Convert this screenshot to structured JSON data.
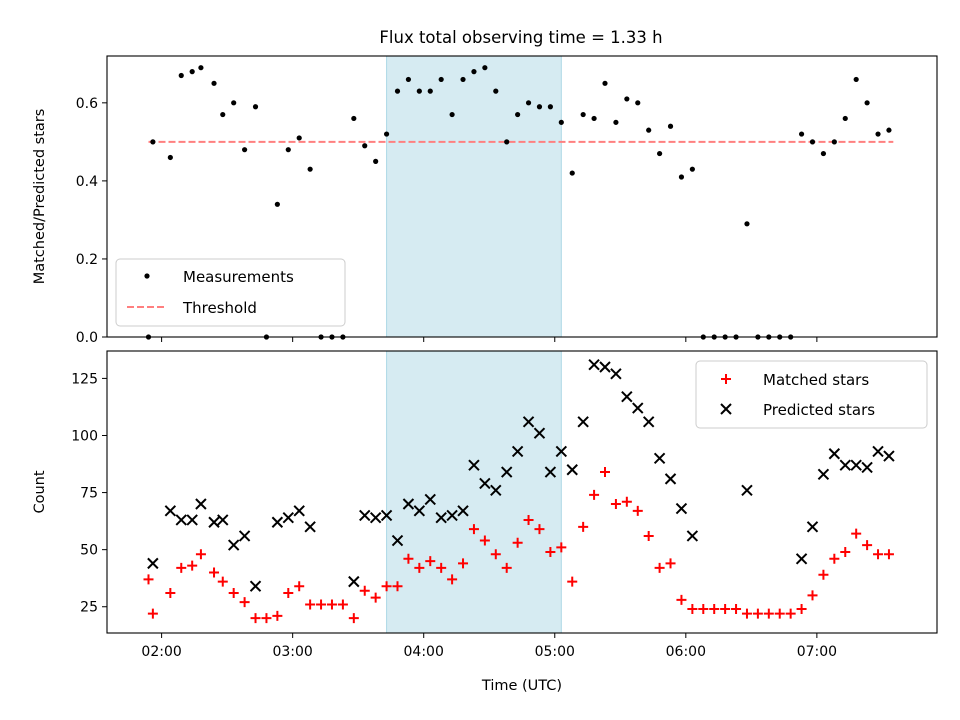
{
  "title": "Flux total observing time = 1.33 h",
  "colors": {
    "shade": "#add8e6",
    "measurements": "#000000",
    "threshold": "#ff7f7f",
    "matched": "#ff0000",
    "predicted": "#000000"
  },
  "chart_data": [
    {
      "type": "scatter",
      "ylabel": "Matched/Predicted stars",
      "xlim": [
        "01:35",
        "07:55"
      ],
      "ylim": [
        0,
        0.72
      ],
      "yticks": [
        0.0,
        0.2,
        0.4,
        0.6
      ],
      "ytick_labels": [
        "0.0",
        "0.2",
        "0.4",
        "0.6"
      ],
      "shaded_interval": [
        "03:43",
        "05:03"
      ],
      "legend": {
        "placement": "lower-left",
        "entries": [
          "Measurements",
          "Threshold"
        ]
      },
      "threshold": {
        "name": "Threshold",
        "y": 0.5,
        "x_range": [
          "01:54",
          "07:35"
        ]
      },
      "series": [
        {
          "name": "Measurements",
          "points": [
            [
              "01:54",
              0.0
            ],
            [
              "01:56",
              0.5
            ],
            [
              "02:04",
              0.46
            ],
            [
              "02:09",
              0.67
            ],
            [
              "02:14",
              0.68
            ],
            [
              "02:18",
              0.69
            ],
            [
              "02:24",
              0.65
            ],
            [
              "02:28",
              0.57
            ],
            [
              "02:33",
              0.6
            ],
            [
              "02:38",
              0.48
            ],
            [
              "02:43",
              0.59
            ],
            [
              "02:48",
              0.0
            ],
            [
              "02:53",
              0.34
            ],
            [
              "02:58",
              0.48
            ],
            [
              "03:03",
              0.51
            ],
            [
              "03:08",
              0.43
            ],
            [
              "03:13",
              0.0
            ],
            [
              "03:18",
              0.0
            ],
            [
              "03:23",
              0.0
            ],
            [
              "03:28",
              0.56
            ],
            [
              "03:33",
              0.49
            ],
            [
              "03:38",
              0.45
            ],
            [
              "03:43",
              0.52
            ],
            [
              "03:48",
              0.63
            ],
            [
              "03:53",
              0.66
            ],
            [
              "03:58",
              0.63
            ],
            [
              "04:03",
              0.63
            ],
            [
              "04:08",
              0.66
            ],
            [
              "04:13",
              0.57
            ],
            [
              "04:18",
              0.66
            ],
            [
              "04:23",
              0.68
            ],
            [
              "04:28",
              0.69
            ],
            [
              "04:33",
              0.63
            ],
            [
              "04:38",
              0.5
            ],
            [
              "04:43",
              0.57
            ],
            [
              "04:48",
              0.6
            ],
            [
              "04:53",
              0.59
            ],
            [
              "04:58",
              0.59
            ],
            [
              "05:03",
              0.55
            ],
            [
              "05:08",
              0.42
            ],
            [
              "05:13",
              0.57
            ],
            [
              "05:18",
              0.56
            ],
            [
              "05:23",
              0.65
            ],
            [
              "05:28",
              0.55
            ],
            [
              "05:33",
              0.61
            ],
            [
              "05:38",
              0.6
            ],
            [
              "05:43",
              0.53
            ],
            [
              "05:48",
              0.47
            ],
            [
              "05:53",
              0.54
            ],
            [
              "05:58",
              0.41
            ],
            [
              "06:03",
              0.43
            ],
            [
              "06:08",
              0.0
            ],
            [
              "06:13",
              0.0
            ],
            [
              "06:18",
              0.0
            ],
            [
              "06:23",
              0.0
            ],
            [
              "06:28",
              0.29
            ],
            [
              "06:33",
              0.0
            ],
            [
              "06:38",
              0.0
            ],
            [
              "06:43",
              0.0
            ],
            [
              "06:48",
              0.0
            ],
            [
              "06:53",
              0.52
            ],
            [
              "06:58",
              0.5
            ],
            [
              "07:03",
              0.47
            ],
            [
              "07:08",
              0.5
            ],
            [
              "07:13",
              0.56
            ],
            [
              "07:18",
              0.66
            ],
            [
              "07:23",
              0.6
            ],
            [
              "07:28",
              0.52
            ],
            [
              "07:33",
              0.53
            ]
          ]
        }
      ]
    },
    {
      "type": "scatter",
      "ylabel": "Count",
      "xlabel": "Time (UTC)",
      "xlim": [
        "01:35",
        "07:55"
      ],
      "ylim": [
        13.5,
        137
      ],
      "yticks": [
        25,
        50,
        75,
        100,
        125
      ],
      "ytick_labels": [
        "25",
        "50",
        "75",
        "100",
        "125"
      ],
      "xticks": [
        "02:00",
        "03:00",
        "04:00",
        "05:00",
        "06:00",
        "07:00"
      ],
      "shaded_interval": [
        "03:43",
        "05:03"
      ],
      "legend": {
        "placement": "upper-right",
        "entries": [
          "Matched stars",
          "Predicted stars"
        ]
      },
      "series": [
        {
          "name": "Matched stars",
          "marker": "plus",
          "points": [
            [
              "01:54",
              37
            ],
            [
              "01:56",
              22
            ],
            [
              "02:04",
              31
            ],
            [
              "02:09",
              42
            ],
            [
              "02:14",
              43
            ],
            [
              "02:18",
              48
            ],
            [
              "02:24",
              40
            ],
            [
              "02:28",
              36
            ],
            [
              "02:33",
              31
            ],
            [
              "02:38",
              27
            ],
            [
              "02:43",
              20
            ],
            [
              "02:48",
              20
            ],
            [
              "02:53",
              21
            ],
            [
              "02:58",
              31
            ],
            [
              "03:03",
              34
            ],
            [
              "03:08",
              26
            ],
            [
              "03:13",
              26
            ],
            [
              "03:18",
              26
            ],
            [
              "03:23",
              26
            ],
            [
              "03:28",
              20
            ],
            [
              "03:33",
              32
            ],
            [
              "03:38",
              29
            ],
            [
              "03:43",
              34
            ],
            [
              "03:48",
              34
            ],
            [
              "03:53",
              46
            ],
            [
              "03:58",
              42
            ],
            [
              "04:03",
              45
            ],
            [
              "04:08",
              42
            ],
            [
              "04:13",
              37
            ],
            [
              "04:18",
              44
            ],
            [
              "04:23",
              59
            ],
            [
              "04:28",
              54
            ],
            [
              "04:33",
              48
            ],
            [
              "04:38",
              42
            ],
            [
              "04:43",
              53
            ],
            [
              "04:48",
              63
            ],
            [
              "04:53",
              59
            ],
            [
              "04:58",
              49
            ],
            [
              "05:03",
              51
            ],
            [
              "05:08",
              36
            ],
            [
              "05:13",
              60
            ],
            [
              "05:18",
              74
            ],
            [
              "05:23",
              84
            ],
            [
              "05:28",
              70
            ],
            [
              "05:33",
              71
            ],
            [
              "05:38",
              67
            ],
            [
              "05:43",
              56
            ],
            [
              "05:48",
              42
            ],
            [
              "05:53",
              44
            ],
            [
              "05:58",
              28
            ],
            [
              "06:03",
              24
            ],
            [
              "06:08",
              24
            ],
            [
              "06:13",
              24
            ],
            [
              "06:18",
              24
            ],
            [
              "06:23",
              24
            ],
            [
              "06:28",
              22
            ],
            [
              "06:33",
              22
            ],
            [
              "06:38",
              22
            ],
            [
              "06:43",
              22
            ],
            [
              "06:48",
              22
            ],
            [
              "06:53",
              24
            ],
            [
              "06:58",
              30
            ],
            [
              "07:03",
              39
            ],
            [
              "07:08",
              46
            ],
            [
              "07:13",
              49
            ],
            [
              "07:18",
              57
            ],
            [
              "07:23",
              52
            ],
            [
              "07:28",
              48
            ],
            [
              "07:33",
              48
            ]
          ]
        },
        {
          "name": "Predicted stars",
          "marker": "x",
          "points": [
            [
              "01:56",
              44
            ],
            [
              "02:04",
              67
            ],
            [
              "02:09",
              63
            ],
            [
              "02:14",
              63
            ],
            [
              "02:18",
              70
            ],
            [
              "02:24",
              62
            ],
            [
              "02:28",
              63
            ],
            [
              "02:33",
              52
            ],
            [
              "02:38",
              56
            ],
            [
              "02:43",
              34
            ],
            [
              "02:53",
              62
            ],
            [
              "02:58",
              64
            ],
            [
              "03:03",
              67
            ],
            [
              "03:08",
              60
            ],
            [
              "03:28",
              36
            ],
            [
              "03:33",
              65
            ],
            [
              "03:38",
              64
            ],
            [
              "03:43",
              65
            ],
            [
              "03:48",
              54
            ],
            [
              "03:53",
              70
            ],
            [
              "03:58",
              67
            ],
            [
              "04:03",
              72
            ],
            [
              "04:08",
              64
            ],
            [
              "04:13",
              65
            ],
            [
              "04:18",
              67
            ],
            [
              "04:23",
              87
            ],
            [
              "04:28",
              79
            ],
            [
              "04:33",
              76
            ],
            [
              "04:38",
              84
            ],
            [
              "04:43",
              93
            ],
            [
              "04:48",
              106
            ],
            [
              "04:53",
              101
            ],
            [
              "04:58",
              84
            ],
            [
              "05:03",
              93
            ],
            [
              "05:08",
              85
            ],
            [
              "05:13",
              106
            ],
            [
              "05:18",
              131
            ],
            [
              "05:23",
              130
            ],
            [
              "05:28",
              127
            ],
            [
              "05:33",
              117
            ],
            [
              "05:38",
              112
            ],
            [
              "05:43",
              106
            ],
            [
              "05:48",
              90
            ],
            [
              "05:53",
              81
            ],
            [
              "05:58",
              68
            ],
            [
              "06:03",
              56
            ],
            [
              "06:28",
              76
            ],
            [
              "06:53",
              46
            ],
            [
              "06:58",
              60
            ],
            [
              "07:03",
              83
            ],
            [
              "07:08",
              92
            ],
            [
              "07:13",
              87
            ],
            [
              "07:18",
              87
            ],
            [
              "07:23",
              86
            ],
            [
              "07:28",
              93
            ],
            [
              "07:33",
              91
            ]
          ]
        }
      ]
    }
  ]
}
